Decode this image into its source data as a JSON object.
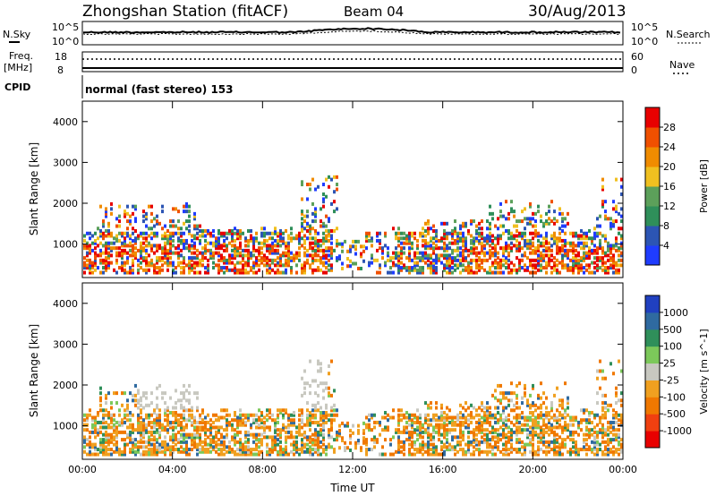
{
  "header": {
    "station": "Zhongshan Station (fitACF)",
    "beam": "Beam 04",
    "date": "30/Aug/2013"
  },
  "noise_panel": {
    "left_label": "N.Sky",
    "right_label": "N.Search",
    "ticks_left": [
      "10^5",
      "10^0"
    ],
    "ticks_right": [
      "10^5",
      "10^0"
    ]
  },
  "freq_panel": {
    "left_label_1": "Freq.",
    "left_label_2": "[MHz]",
    "right_label": "Nave",
    "ticks_left": [
      "18",
      "8"
    ],
    "ticks_right": [
      "60",
      "0"
    ]
  },
  "cpid": {
    "label": "CPID",
    "value": "normal (fast stereo) 153"
  },
  "chart_data": [
    {
      "type": "heatmap",
      "title": "Power",
      "ylabel": "Slant Range [km]",
      "xlabel": "",
      "ylim": [
        180,
        4500
      ],
      "yticks": [
        "1000",
        "2000",
        "3000",
        "4000"
      ],
      "xticks": [
        "00:00",
        "04:00",
        "08:00",
        "12:00",
        "16:00",
        "20:00",
        "00:00"
      ],
      "colorbar": {
        "label": "Power [dB]",
        "ticks": [
          "4",
          "8",
          "12",
          "16",
          "20",
          "24",
          "28"
        ],
        "colors": [
          "#1f3cff",
          "#2c55b4",
          "#2f8f5a",
          "#5ca05a",
          "#f0c020",
          "#f08c00",
          "#f05000",
          "#e80000"
        ]
      }
    },
    {
      "type": "heatmap",
      "title": "Velocity",
      "ylabel": "Slant Range [km]",
      "xlabel": "Time UT",
      "ylim": [
        180,
        4500
      ],
      "yticks": [
        "1000",
        "2000",
        "3000",
        "4000"
      ],
      "xticks": [
        "00:00",
        "04:00",
        "08:00",
        "12:00",
        "16:00",
        "20:00",
        "00:00"
      ],
      "colorbar": {
        "label": "Velocity [m s^-1]",
        "ticks": [
          "1000",
          "500",
          "100",
          "25",
          "-25",
          "-100",
          "-500",
          "-1000"
        ],
        "colors": [
          "#2040c0",
          "#2f6aa0",
          "#2f8f5a",
          "#7cc85a",
          "#c8c8c0",
          "#f0a020",
          "#f07800",
          "#f04010",
          "#e80000"
        ]
      }
    }
  ]
}
